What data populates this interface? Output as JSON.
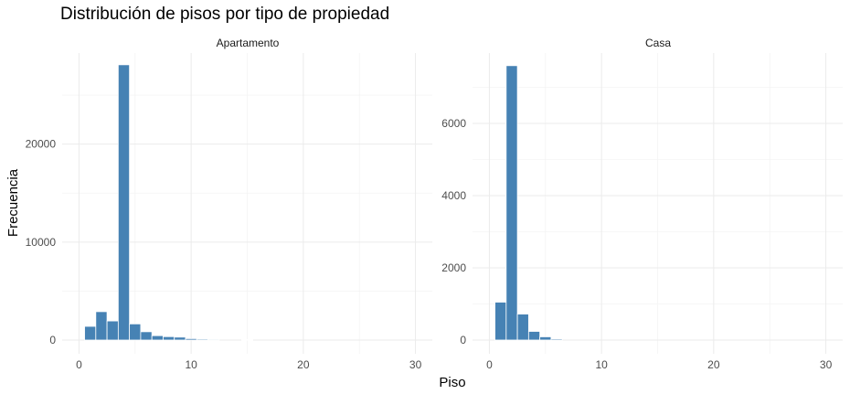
{
  "chart_data": {
    "type": "bar",
    "title": "Distribución de pisos por tipo de propiedad",
    "xlabel": "Piso",
    "ylabel": "Frecuencia",
    "bar_color": "#4682B4",
    "grid": true,
    "x_ticks": [
      0,
      10,
      20,
      30
    ],
    "xlim": [
      -1.5,
      31.5
    ],
    "bin_width": 1,
    "panels": [
      {
        "name": "Apartamento",
        "ylim": [
          -1400,
          29300
        ],
        "y_ticks": [
          0,
          10000,
          20000
        ],
        "y_tick_labels": [
          "0",
          "10000",
          "20000"
        ],
        "bins": [
          {
            "x": 1,
            "value": 1400
          },
          {
            "x": 2,
            "value": 2900
          },
          {
            "x": 3,
            "value": 1950
          },
          {
            "x": 4,
            "value": 28100
          },
          {
            "x": 5,
            "value": 1650
          },
          {
            "x": 6,
            "value": 850
          },
          {
            "x": 7,
            "value": 450
          },
          {
            "x": 8,
            "value": 350
          },
          {
            "x": 9,
            "value": 300
          },
          {
            "x": 10,
            "value": 150
          },
          {
            "x": 11,
            "value": 100
          },
          {
            "x": 12,
            "value": 80
          },
          {
            "x": 15,
            "value": 60
          }
        ]
      },
      {
        "name": "Casa",
        "ylim": [
          -380,
          7950
        ],
        "y_ticks": [
          0,
          2000,
          4000,
          6000
        ],
        "y_tick_labels": [
          "0",
          "2000",
          "4000",
          "6000"
        ],
        "bins": [
          {
            "x": 1,
            "value": 1050
          },
          {
            "x": 2,
            "value": 7600
          },
          {
            "x": 3,
            "value": 720
          },
          {
            "x": 4,
            "value": 240
          },
          {
            "x": 5,
            "value": 90
          },
          {
            "x": 6,
            "value": 30
          }
        ]
      }
    ]
  }
}
